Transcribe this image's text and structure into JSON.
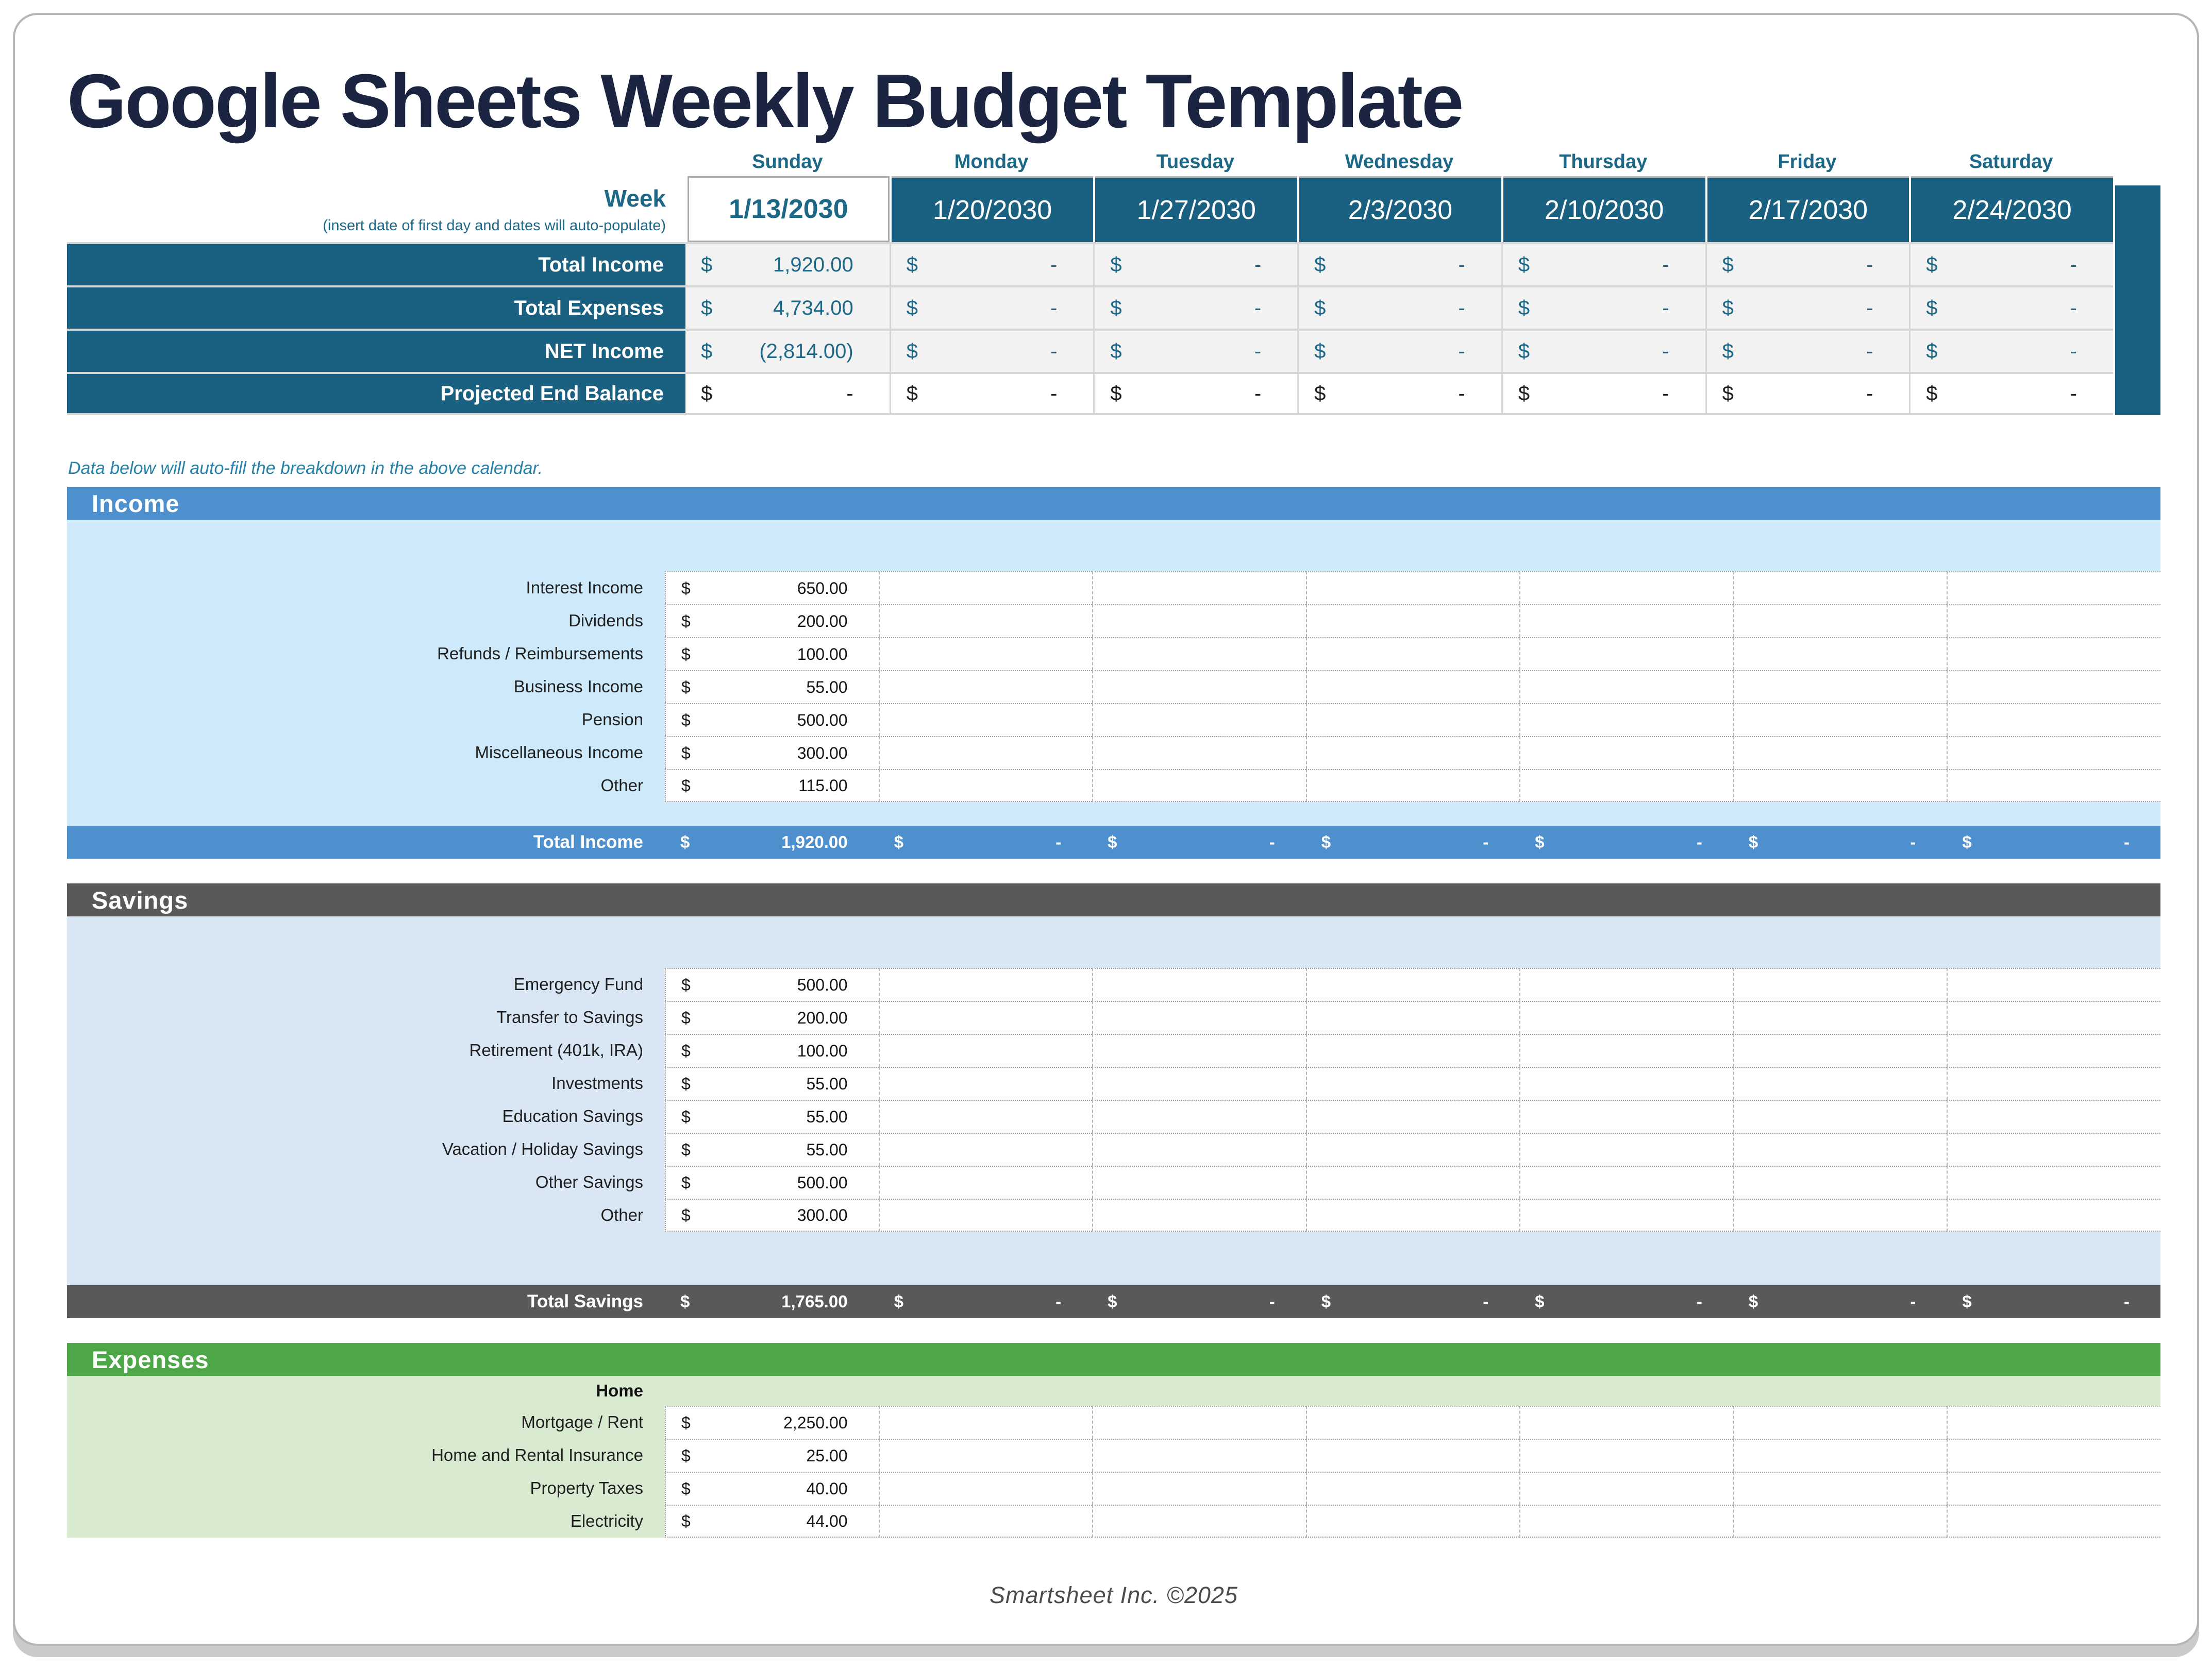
{
  "title": "Google Sheets Weekly Budget Template",
  "note": "Data below will auto-fill the breakdown in the above calendar.",
  "footer": "Smartsheet Inc. ©2025",
  "currency": "$",
  "colors": {
    "teal": "#1A6080",
    "blue_header": "#4E8FCE",
    "income_body": "#CDE9FA",
    "savings_body": "#D9E7F5",
    "savings_header": "#595959",
    "expenses_header": "#4DA647",
    "expenses_body": "#D8EAD0",
    "title_navy": "#1B2542",
    "cell_gray": "#F2F2F2"
  },
  "calendar": {
    "week_label": "Week",
    "week_sublabel": "(insert date of first day and dates will auto-populate)",
    "days": [
      "Sunday",
      "Monday",
      "Tuesday",
      "Wednesday",
      "Thursday",
      "Friday",
      "Saturday"
    ],
    "dates": [
      "1/13/2030",
      "1/20/2030",
      "1/27/2030",
      "2/3/2030",
      "2/10/2030",
      "2/17/2030",
      "2/24/2030"
    ],
    "rows": [
      {
        "label": "Total Income",
        "values": [
          "1,920.00",
          "-",
          "-",
          "-",
          "-",
          "-",
          "-"
        ]
      },
      {
        "label": "Total Expenses",
        "values": [
          "4,734.00",
          "-",
          "-",
          "-",
          "-",
          "-",
          "-"
        ]
      },
      {
        "label": "NET Income",
        "values": [
          "(2,814.00)",
          "-",
          "-",
          "-",
          "-",
          "-",
          "-"
        ]
      },
      {
        "label": "Projected End Balance",
        "values": [
          "-",
          "-",
          "-",
          "-",
          "-",
          "-",
          "-"
        ]
      }
    ]
  },
  "sections": [
    {
      "key": "income",
      "title": "Income",
      "items": [
        {
          "label": "Interest Income",
          "value": "650.00"
        },
        {
          "label": "Dividends",
          "value": "200.00"
        },
        {
          "label": "Refunds / Reimbursements",
          "value": "100.00"
        },
        {
          "label": "Business Income",
          "value": "55.00"
        },
        {
          "label": "Pension",
          "value": "500.00"
        },
        {
          "label": "Miscellaneous Income",
          "value": "300.00"
        },
        {
          "label": "Other",
          "value": "115.00"
        }
      ],
      "total": {
        "label": "Total Income",
        "values": [
          "1,920.00",
          "-",
          "-",
          "-",
          "-",
          "-",
          "-"
        ]
      }
    },
    {
      "key": "savings",
      "title": "Savings",
      "items": [
        {
          "label": "Emergency Fund",
          "value": "500.00"
        },
        {
          "label": "Transfer to Savings",
          "value": "200.00"
        },
        {
          "label": "Retirement (401k, IRA)",
          "value": "100.00"
        },
        {
          "label": "Investments",
          "value": "55.00"
        },
        {
          "label": "Education Savings",
          "value": "55.00"
        },
        {
          "label": "Vacation / Holiday Savings",
          "value": "55.00"
        },
        {
          "label": "Other Savings",
          "value": "500.00"
        },
        {
          "label": "Other",
          "value": "300.00"
        }
      ],
      "total": {
        "label": "Total Savings",
        "values": [
          "1,765.00",
          "-",
          "-",
          "-",
          "-",
          "-",
          "-"
        ]
      }
    },
    {
      "key": "expenses",
      "title": "Expenses",
      "subheader": "Home",
      "items": [
        {
          "label": "Mortgage / Rent",
          "value": "2,250.00"
        },
        {
          "label": "Home and Rental Insurance",
          "value": "25.00"
        },
        {
          "label": "Property Taxes",
          "value": "40.00"
        },
        {
          "label": "Electricity",
          "value": "44.00"
        }
      ]
    }
  ]
}
